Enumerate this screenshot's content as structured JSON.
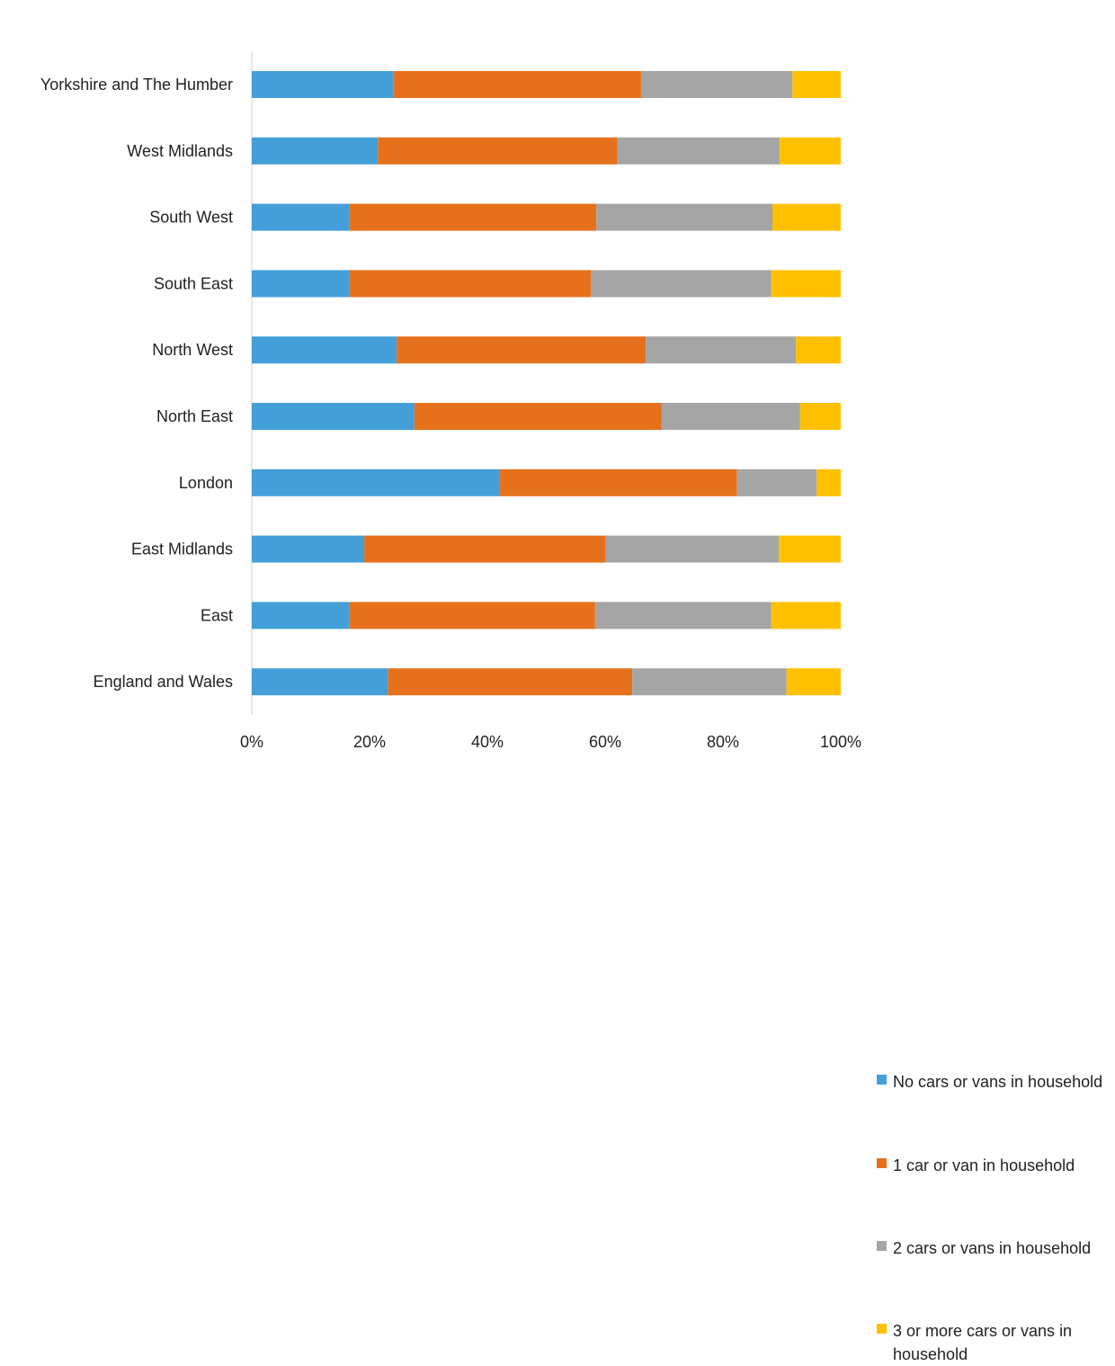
{
  "chart_data": {
    "type": "bar",
    "orientation": "horizontal",
    "stacked": "percent",
    "categories": [
      "Yorkshire and The Humber",
      "West Midlands",
      "South West",
      "South East",
      "North West",
      "North East",
      "London",
      "East Midlands",
      "East",
      "England and Wales"
    ],
    "series": [
      {
        "name": "No cars or vans in household",
        "color": "#449FD9",
        "values": [
          24.0,
          21.4,
          16.6,
          16.6,
          24.6,
          27.6,
          42.0,
          19.1,
          16.6,
          23.1
        ]
      },
      {
        "name": "1 car or van in household",
        "color": "#E6711C",
        "values": [
          42.1,
          40.7,
          41.9,
          41.0,
          42.3,
          42.0,
          40.4,
          40.9,
          41.7,
          41.5
        ]
      },
      {
        "name": "2 cars or vans in household",
        "color": "#A5A5A5",
        "values": [
          25.7,
          27.5,
          29.9,
          30.6,
          25.5,
          23.5,
          13.5,
          29.5,
          29.9,
          26.2
        ]
      },
      {
        "name": "3 or more cars or vans in household",
        "color": "#FFC000",
        "values": [
          8.2,
          10.4,
          11.6,
          11.8,
          7.6,
          6.9,
          4.1,
          10.5,
          11.8,
          9.2
        ]
      }
    ],
    "xticks": [
      "0%",
      "20%",
      "40%",
      "60%",
      "80%",
      "100%"
    ],
    "xlim": [
      0,
      100
    ],
    "title": "",
    "xlabel": "",
    "ylabel": "",
    "grid": false,
    "legend_position": "right"
  }
}
